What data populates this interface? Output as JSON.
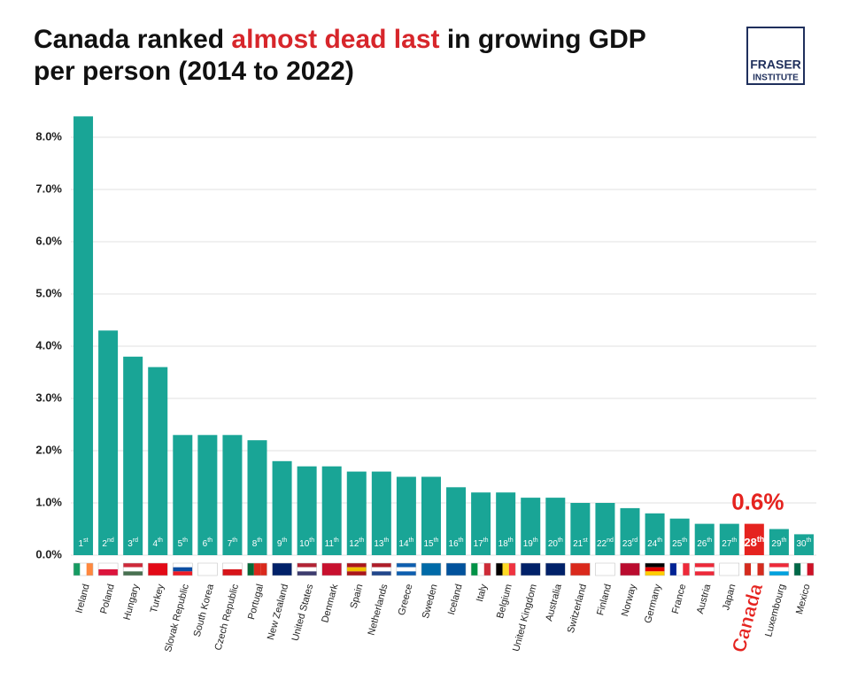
{
  "chart_data": {
    "type": "bar",
    "title": {
      "lines": [
        [
          {
            "text": "Canada ranked "
          },
          {
            "text": "almost dead last",
            "color": "#d7262b"
          },
          {
            "text": " in growing GDP"
          }
        ],
        [
          {
            "text": "per person (2014 to 2022)"
          }
        ]
      ]
    },
    "logo": [
      "FRASER",
      "INSTITUTE"
    ],
    "categories": [
      "Ireland",
      "Poland",
      "Hungary",
      "Turkey",
      "Slovak Republic",
      "South Korea",
      "Czech Republic",
      "Portugal",
      "New Zealand",
      "United States",
      "Denmark",
      "Spain",
      "Netherlands",
      "Greece",
      "Sweden",
      "Iceland",
      "Italy",
      "Belgium",
      "United Kingdom",
      "Australia",
      "Switzerland",
      "Finland",
      "Norway",
      "Germany",
      "France",
      "Austria",
      "Japan",
      "Canada",
      "Luxembourg",
      "Mexico"
    ],
    "values": [
      8.4,
      4.3,
      3.8,
      3.6,
      2.3,
      2.3,
      2.3,
      2.2,
      1.8,
      1.7,
      1.7,
      1.6,
      1.6,
      1.5,
      1.5,
      1.3,
      1.2,
      1.2,
      1.1,
      1.1,
      1.0,
      1.0,
      0.9,
      0.8,
      0.7,
      0.6,
      0.6,
      0.6,
      0.5,
      0.4
    ],
    "value_labels": [
      null,
      null,
      null,
      null,
      null,
      null,
      null,
      null,
      null,
      null,
      null,
      null,
      null,
      null,
      null,
      null,
      null,
      null,
      null,
      null,
      null,
      null,
      null,
      null,
      null,
      null,
      null,
      "0.6%",
      null,
      null
    ],
    "ranks": [
      "1st",
      "2nd",
      "3rd",
      "4th",
      "5th",
      "6th",
      "7th",
      "8th",
      "9th",
      "10th",
      "11th",
      "12th",
      "13th",
      "14th",
      "15th",
      "16th",
      "17th",
      "18th",
      "19th",
      "20th",
      "21st",
      "22nd",
      "23rd",
      "24th",
      "25th",
      "26th",
      "27th",
      "28th",
      "29th",
      "30th"
    ],
    "color": "#19a596",
    "colors": [
      "#19a596",
      "#19a596",
      "#19a596",
      "#19a596",
      "#19a596",
      "#19a596",
      "#19a596",
      "#19a596",
      "#19a596",
      "#19a596",
      "#19a596",
      "#19a596",
      "#19a596",
      "#19a596",
      "#19a596",
      "#19a596",
      "#19a596",
      "#19a596",
      "#19a596",
      "#19a596",
      "#19a596",
      "#19a596",
      "#19a596",
      "#19a596",
      "#19a596",
      "#19a596",
      "#19a596",
      "#e5231f",
      "#19a596",
      "#19a596"
    ],
    "ylim": [
      0,
      8.5
    ],
    "yticks": [
      {
        "value": 0,
        "label": "0.0%"
      },
      {
        "value": 1,
        "label": "1.0%"
      },
      {
        "value": 2,
        "label": "2.0%"
      },
      {
        "value": 3,
        "label": "3.0%"
      },
      {
        "value": 4,
        "label": "4.0%"
      },
      {
        "value": 5,
        "label": "5.0%"
      },
      {
        "value": 6,
        "label": "6.0%"
      },
      {
        "value": 7,
        "label": "7.0%"
      },
      {
        "value": 8,
        "label": "8.0%"
      }
    ],
    "grid": true
  }
}
